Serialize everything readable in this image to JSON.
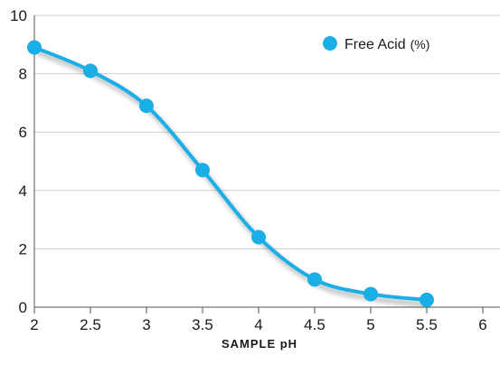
{
  "chart_data": {
    "type": "line",
    "title": "",
    "xlabel": "SAMPLE pH",
    "ylabel": "",
    "xlim": [
      2,
      6
    ],
    "ylim": [
      0,
      10
    ],
    "x_ticks": [
      "2",
      "2.5",
      "3",
      "3.5",
      "4",
      "4.5",
      "5",
      "5.5",
      "6"
    ],
    "y_ticks": [
      "0",
      "2",
      "4",
      "6",
      "8",
      "10"
    ],
    "grid": "horizontal",
    "legend_position": "top-right",
    "series": [
      {
        "name": "Free Acid",
        "name_unit": "(%)",
        "color": "#1aaee6",
        "x": [
          2,
          2.5,
          3,
          3.5,
          4,
          4.5,
          5,
          5.5
        ],
        "y": [
          8.9,
          8.1,
          6.9,
          4.7,
          2.4,
          0.95,
          0.45,
          0.25
        ]
      }
    ]
  }
}
